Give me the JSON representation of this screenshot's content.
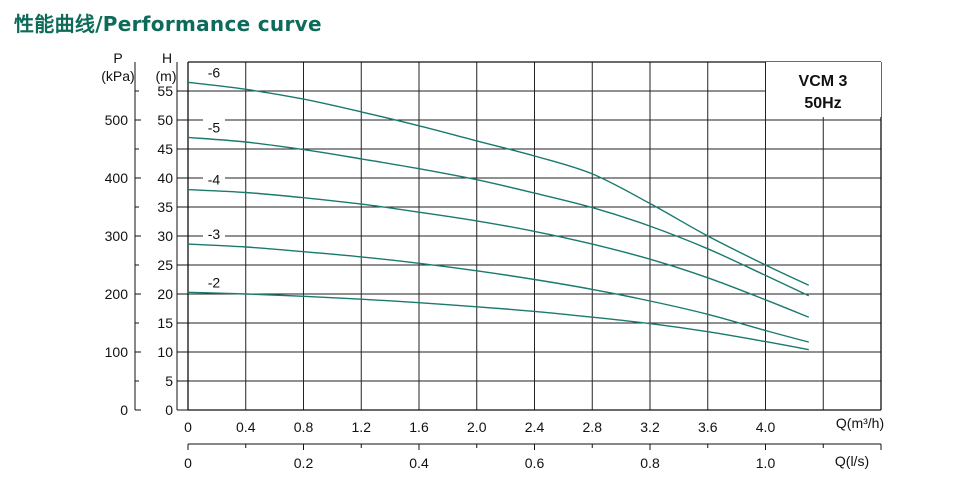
{
  "page_title": "性能曲线/Performance curve",
  "chart_data": {
    "type": "line",
    "title": "VCM 3",
    "subtitle": "50Hz",
    "y_left_label": [
      "P",
      "(kPa)"
    ],
    "y_right_label": [
      "H",
      "(m)"
    ],
    "x_label_top": "Q(m³/h)",
    "x_label_bottom": "Q(l/s)",
    "pressure_ticks": [
      "0",
      "100",
      "200",
      "300",
      "400",
      "500"
    ],
    "head_ticks": [
      "0",
      "5",
      "10",
      "15",
      "20",
      "25",
      "30",
      "35",
      "40",
      "45",
      "50",
      "55"
    ],
    "q_m3h_ticks": [
      "0",
      "0.4",
      "0.8",
      "1.2",
      "1.6",
      "2.0",
      "2.4",
      "2.8",
      "3.2",
      "3.6",
      "4.0"
    ],
    "q_ls_ticks": [
      "0",
      "0.2",
      "0.4",
      "0.6",
      "0.8",
      "1.0"
    ],
    "head_range": [
      0,
      60
    ],
    "pressure_range": [
      0,
      600
    ],
    "q_m3h_range": [
      0,
      4.8
    ],
    "q_ls_range": [
      0,
      1.2
    ],
    "grid": true,
    "curve_color": "#1a7a6e",
    "series": [
      {
        "name": "-6",
        "x": [
          0,
          0.4,
          0.8,
          1.2,
          1.6,
          2.0,
          2.4,
          2.8,
          3.2,
          3.6,
          4.0,
          4.3
        ],
        "y": [
          56.5,
          55.3,
          53.6,
          51.4,
          49.0,
          46.4,
          43.8,
          40.7,
          35.6,
          30.0,
          25.0,
          21.5
        ]
      },
      {
        "name": "-5",
        "x": [
          0,
          0.4,
          0.8,
          1.2,
          1.6,
          2.0,
          2.4,
          2.8,
          3.2,
          3.6,
          4.0,
          4.3
        ],
        "y": [
          47.0,
          46.2,
          44.9,
          43.3,
          41.6,
          39.7,
          37.4,
          34.9,
          31.7,
          27.8,
          23.2,
          19.7
        ]
      },
      {
        "name": "-4",
        "x": [
          0,
          0.4,
          0.8,
          1.2,
          1.6,
          2.0,
          2.4,
          2.8,
          3.2,
          3.6,
          4.0,
          4.3
        ],
        "y": [
          38.0,
          37.5,
          36.6,
          35.5,
          34.1,
          32.6,
          30.8,
          28.6,
          26.0,
          22.8,
          19.0,
          16.0
        ]
      },
      {
        "name": "-3",
        "x": [
          0,
          0.4,
          0.8,
          1.2,
          1.6,
          2.0,
          2.4,
          2.8,
          3.2,
          3.6,
          4.0,
          4.3
        ],
        "y": [
          28.6,
          28.1,
          27.3,
          26.4,
          25.3,
          24.0,
          22.5,
          20.8,
          18.8,
          16.5,
          13.7,
          11.7
        ]
      },
      {
        "name": "-2",
        "x": [
          0,
          0.4,
          0.8,
          1.2,
          1.6,
          2.0,
          2.4,
          2.8,
          3.2,
          3.6,
          4.0,
          4.3
        ],
        "y": [
          20.3,
          20.0,
          19.6,
          19.1,
          18.5,
          17.8,
          17.0,
          16.0,
          14.9,
          13.5,
          11.8,
          10.4
        ]
      }
    ]
  }
}
